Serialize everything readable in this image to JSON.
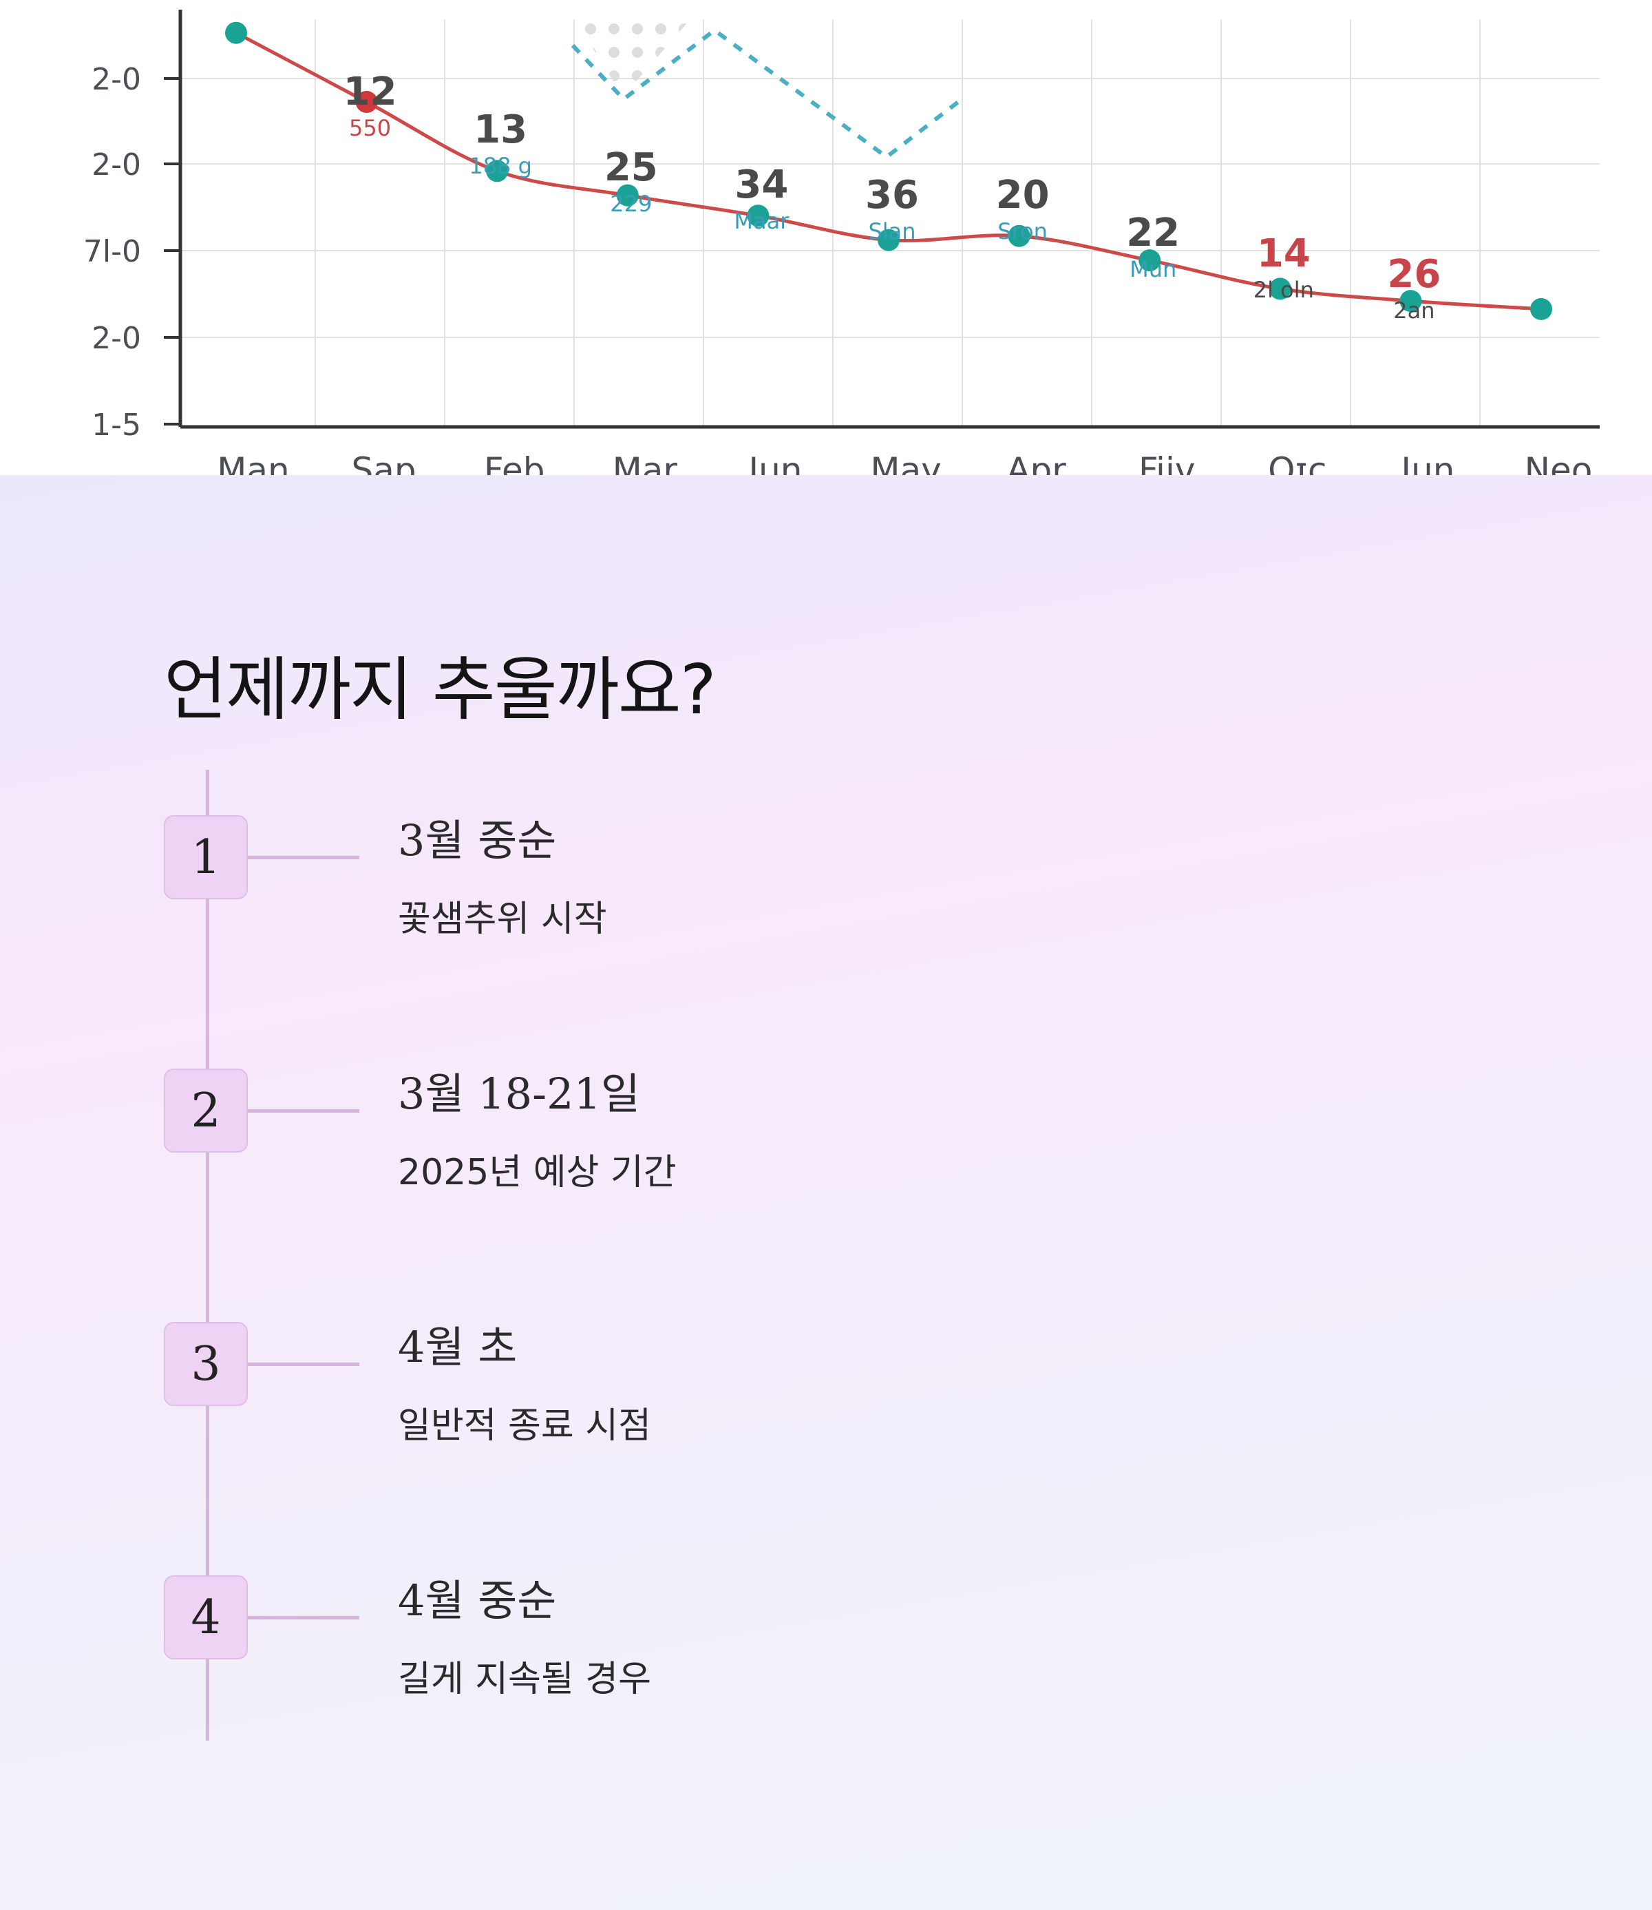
{
  "chart_data": {
    "type": "line",
    "yticks": [
      "2-0",
      "2-0",
      "7l-0",
      "2-0",
      "1-5"
    ],
    "categories": [
      "Man",
      "Sap",
      "Feb",
      "Mar",
      "Jun",
      "May",
      "Apr",
      "Fiiv",
      "Oɪc",
      "Jun",
      "Neo"
    ],
    "series": [
      {
        "values": [
          97,
          80,
          63,
          57,
          52,
          46,
          47,
          41,
          34,
          31,
          29
        ]
      }
    ],
    "ylim": [
      0,
      100
    ],
    "data_labels": [
      {
        "at": 1,
        "value": "12",
        "sub": "550",
        "value_color": "#4a4a4a",
        "sub_color": "#c8444b"
      },
      {
        "at": 2,
        "value": "13",
        "sub": "188 g",
        "value_color": "#4a4a4a",
        "sub_color": "#3a9db8"
      },
      {
        "at": 3,
        "value": "25",
        "sub": "229",
        "value_color": "#4a4a4a",
        "sub_color": "#3a9db8"
      },
      {
        "at": 4,
        "value": "34",
        "sub": "Maar",
        "value_color": "#4a4a4a",
        "sub_color": "#3a9db8"
      },
      {
        "at": 5,
        "value": "36",
        "sub": "Slan",
        "value_color": "#4a4a4a",
        "sub_color": "#3a9db8"
      },
      {
        "at": 6,
        "value": "20",
        "sub": "Sron",
        "value_color": "#4a4a4a",
        "sub_color": "#3a9db8"
      },
      {
        "at": 7,
        "value": "22",
        "sub": "Mun",
        "value_color": "#4a4a4a",
        "sub_color": "#3a9db8"
      },
      {
        "at": 8,
        "value": "14",
        "sub": "2l oln",
        "value_color": "#c8444b",
        "sub_color": "#4a4a4a"
      },
      {
        "at": 9,
        "value": "26",
        "sub": "2an",
        "value_color": "#c8444b",
        "sub_color": "#4a4a4a"
      }
    ],
    "colors": {
      "line": "#cc4a48",
      "point": "#1aa395",
      "point_highlight": "#d1383c",
      "dashed_line": "#4aaec4",
      "grid": "#e2e2e2",
      "axis": "#333333"
    },
    "highlight_index": 1,
    "grid": true
  },
  "timeline": {
    "title": "언제까지 추울까요?",
    "steps": [
      {
        "number": "1",
        "title": "3월 중순",
        "desc": "꽃샘추위 시작"
      },
      {
        "number": "2",
        "title": "3월 18-21일",
        "desc": "2025년 예상 기간"
      },
      {
        "number": "3",
        "title": "4월 초",
        "desc": "일반적 종료 시점"
      },
      {
        "number": "4",
        "title": "4월 중순",
        "desc": "길게 지속될 경우"
      }
    ]
  }
}
